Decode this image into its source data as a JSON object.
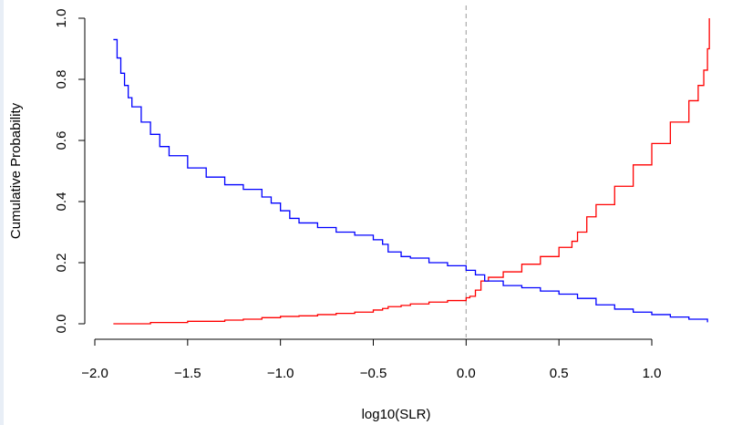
{
  "chart_data": {
    "type": "line",
    "title": "",
    "xlabel": "log10(SLR)",
    "ylabel": "Cumulative Probability",
    "xlim": [
      -2.0,
      1.3
    ],
    "ylim": [
      0.0,
      1.0
    ],
    "x_ticks": [
      -2.0,
      -1.5,
      -1.0,
      -0.5,
      0.0,
      0.5,
      1.0
    ],
    "x_tick_labels": [
      "−2.0",
      "−1.5",
      "−1.0",
      "−0.5",
      "0.0",
      "0.5",
      "1.0"
    ],
    "y_ticks": [
      0.0,
      0.2,
      0.4,
      0.6,
      0.8,
      1.0
    ],
    "y_tick_labels": [
      "0.0",
      "0.2",
      "0.4",
      "0.6",
      "0.8",
      "1.0"
    ],
    "grid": false,
    "reference_line": {
      "x": 0.0,
      "style": "dashed",
      "color": "#aaaaaa"
    },
    "series": [
      {
        "color": "#ff0000",
        "step": true,
        "points": [
          [
            -1.9,
            0.0
          ],
          [
            -1.7,
            0.004
          ],
          [
            -1.5,
            0.008
          ],
          [
            -1.3,
            0.012
          ],
          [
            -1.2,
            0.015
          ],
          [
            -1.1,
            0.02
          ],
          [
            -1.0,
            0.024
          ],
          [
            -0.9,
            0.026
          ],
          [
            -0.8,
            0.03
          ],
          [
            -0.7,
            0.034
          ],
          [
            -0.6,
            0.038
          ],
          [
            -0.5,
            0.045
          ],
          [
            -0.45,
            0.05
          ],
          [
            -0.42,
            0.056
          ],
          [
            -0.35,
            0.06
          ],
          [
            -0.3,
            0.065
          ],
          [
            -0.2,
            0.071
          ],
          [
            -0.1,
            0.076
          ],
          [
            0.0,
            0.085
          ],
          [
            0.02,
            0.09
          ],
          [
            0.05,
            0.11
          ],
          [
            0.08,
            0.14
          ],
          [
            0.12,
            0.152
          ],
          [
            0.2,
            0.17
          ],
          [
            0.3,
            0.195
          ],
          [
            0.4,
            0.22
          ],
          [
            0.5,
            0.25
          ],
          [
            0.57,
            0.27
          ],
          [
            0.6,
            0.3
          ],
          [
            0.65,
            0.35
          ],
          [
            0.7,
            0.39
          ],
          [
            0.8,
            0.45
          ],
          [
            0.9,
            0.52
          ],
          [
            1.0,
            0.59
          ],
          [
            1.1,
            0.66
          ],
          [
            1.2,
            0.73
          ],
          [
            1.25,
            0.78
          ],
          [
            1.28,
            0.83
          ],
          [
            1.3,
            0.9
          ],
          [
            1.31,
            1.0
          ]
        ]
      },
      {
        "color": "#0000ff",
        "step": true,
        "points": [
          [
            -1.9,
            0.93
          ],
          [
            -1.88,
            0.87
          ],
          [
            -1.86,
            0.82
          ],
          [
            -1.84,
            0.78
          ],
          [
            -1.82,
            0.74
          ],
          [
            -1.8,
            0.71
          ],
          [
            -1.75,
            0.66
          ],
          [
            -1.7,
            0.62
          ],
          [
            -1.65,
            0.58
          ],
          [
            -1.6,
            0.55
          ],
          [
            -1.5,
            0.51
          ],
          [
            -1.4,
            0.48
          ],
          [
            -1.3,
            0.455
          ],
          [
            -1.2,
            0.44
          ],
          [
            -1.1,
            0.415
          ],
          [
            -1.05,
            0.395
          ],
          [
            -1.0,
            0.37
          ],
          [
            -0.95,
            0.345
          ],
          [
            -0.9,
            0.33
          ],
          [
            -0.8,
            0.315
          ],
          [
            -0.7,
            0.3
          ],
          [
            -0.6,
            0.29
          ],
          [
            -0.5,
            0.275
          ],
          [
            -0.45,
            0.26
          ],
          [
            -0.42,
            0.235
          ],
          [
            -0.35,
            0.22
          ],
          [
            -0.3,
            0.215
          ],
          [
            -0.2,
            0.2
          ],
          [
            -0.1,
            0.19
          ],
          [
            0.0,
            0.175
          ],
          [
            0.05,
            0.16
          ],
          [
            0.1,
            0.14
          ],
          [
            0.2,
            0.125
          ],
          [
            0.3,
            0.118
          ],
          [
            0.4,
            0.107
          ],
          [
            0.5,
            0.097
          ],
          [
            0.6,
            0.083
          ],
          [
            0.7,
            0.062
          ],
          [
            0.8,
            0.048
          ],
          [
            0.9,
            0.038
          ],
          [
            1.0,
            0.03
          ],
          [
            1.1,
            0.022
          ],
          [
            1.2,
            0.015
          ],
          [
            1.3,
            0.005
          ]
        ]
      }
    ]
  }
}
